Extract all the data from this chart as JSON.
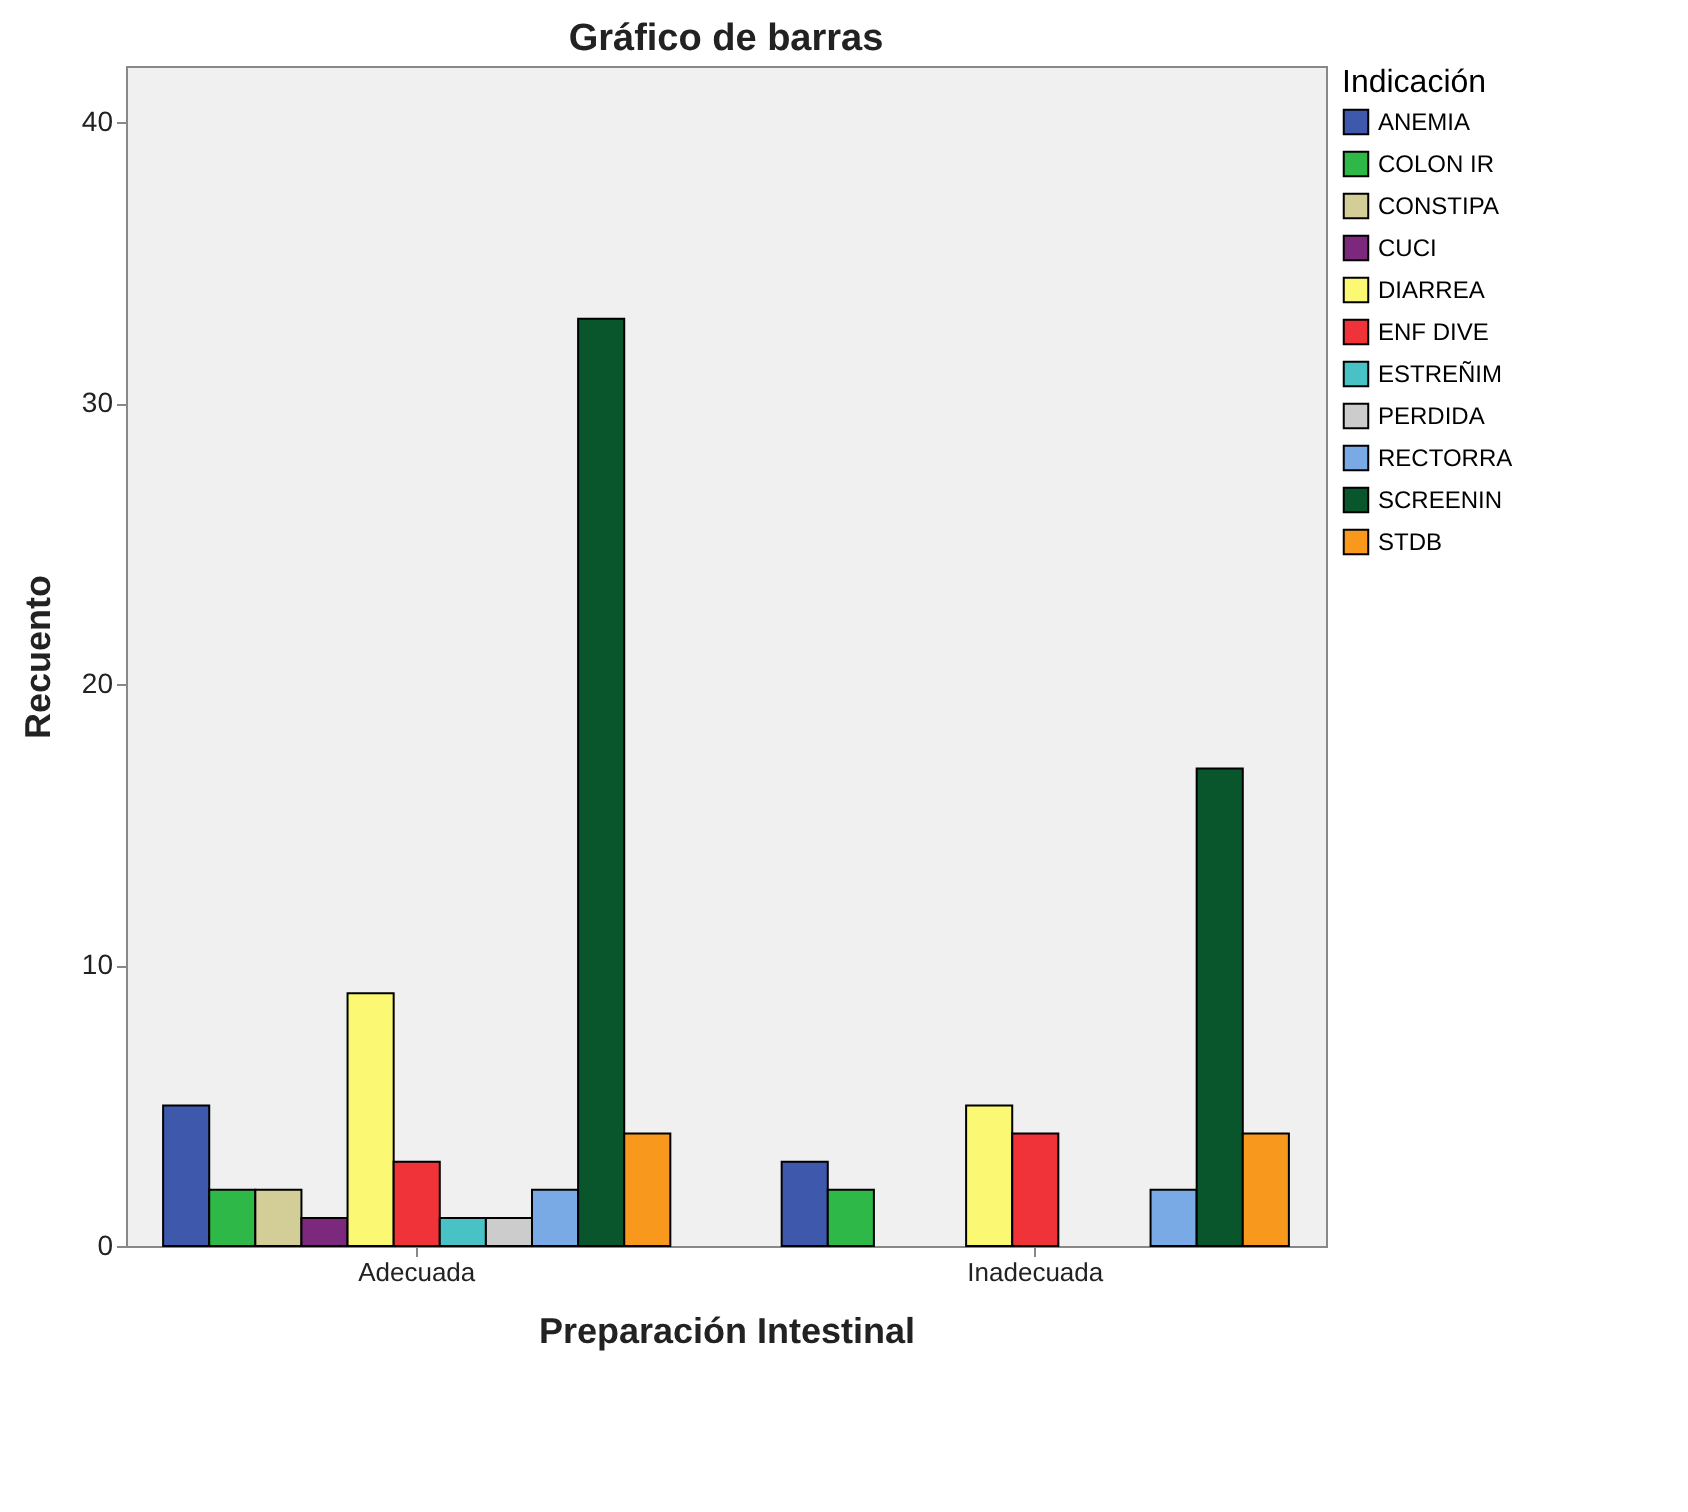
{
  "chart_data": {
    "type": "bar",
    "title": "Gráfico de barras",
    "xlabel": "Preparación Intestinal",
    "ylabel": "Recuento",
    "legend_title": "Indicación",
    "categories": [
      "Adecuada",
      "Inadecuada"
    ],
    "series": [
      {
        "name": "ANEMIA",
        "color": "#3e58ac",
        "values": [
          5,
          3
        ]
      },
      {
        "name": "COLON IR",
        "color": "#2eb848",
        "values": [
          2,
          2
        ]
      },
      {
        "name": "CONSTIPA",
        "color": "#d3ce97",
        "values": [
          2,
          null
        ]
      },
      {
        "name": "CUCI",
        "color": "#7c287d",
        "values": [
          1,
          null
        ]
      },
      {
        "name": "DIARREA",
        "color": "#fbf873",
        "values": [
          9,
          5
        ]
      },
      {
        "name": "ENF DIVE",
        "color": "#ef3338",
        "values": [
          3,
          4
        ]
      },
      {
        "name": "ESTREÑIM",
        "color": "#48c2c5",
        "values": [
          1,
          null
        ]
      },
      {
        "name": "PERDIDA",
        "color": "#cccccc",
        "values": [
          1,
          null
        ]
      },
      {
        "name": "RECTORRA",
        "color": "#7aaae5",
        "values": [
          2,
          2
        ]
      },
      {
        "name": "SCREENIN",
        "color": "#0a562c",
        "values": [
          33,
          17
        ]
      },
      {
        "name": "STDB",
        "color": "#f8981d",
        "values": [
          4,
          4
        ]
      }
    ],
    "ylim": [
      0,
      42
    ],
    "yticks": [
      0,
      10,
      20,
      30,
      40
    ],
    "grid": false,
    "legend": "top right"
  }
}
